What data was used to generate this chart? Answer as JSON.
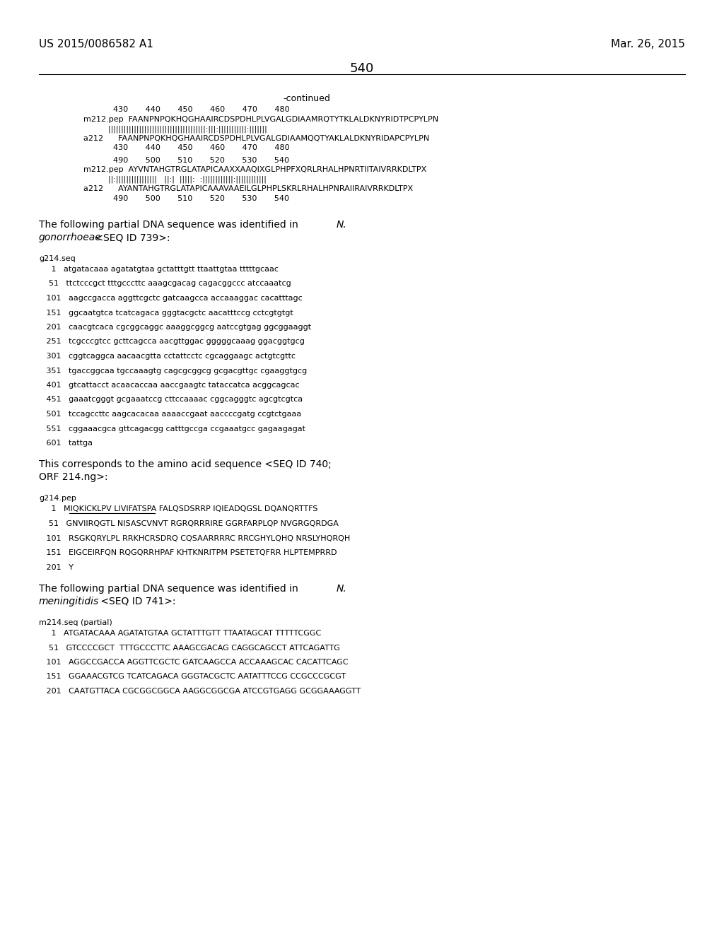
{
  "page_number": "540",
  "patent_number": "US 2015/0086582 A1",
  "patent_date": "Mar. 26, 2015",
  "background_color": "#ffffff",
  "text_color": "#000000",
  "continued_label": "-continued",
  "align_lines": [
    "            430       440       450       460       470       480",
    "m212.pep  FAANPNPQKHQGHAAIRCDSPDHLPLVGALGDIAAMRQTYTKLALDKNYRIDTPCPYLPN",
    "          ||||||||||||||||||||||||||||||||||||||:|||:|||||||||||:|||||||",
    "a212      FAANPNPQKHQGHAAIRCDSPDHLPLVGALGDIAAMQQTYAKLALDKNYRIDAPCPYLPN",
    "            430       440       450       460       470       480",
    "            490       500       510       520       530       540",
    "m212.pep  AYVNTAHGTRGLATAPICAAXXAAQIXGLPHPFXQRLRHALHPNRTIITAIVRRKDLTPX",
    "          ||:||||||||||||||||   ||:|  |||||:  :||||||||||||:||||||||||||",
    "a212      AYANTAHGTRGLATAPICAAAVAAEILGLPHPLSKRLRHALHPNRAIIRAIVRRKDLTPX",
    "            490       500       510       520       530       540"
  ],
  "para1_normal": "The following partial DNA sequence was identified in ",
  "para1_italic": "N.",
  "para2_italic": "gonorrhoeae",
  "para2_normal": " <SEQ ID 739>:",
  "seq_label1": "g214.seq",
  "seq_lines1": [
    "     1   atgatacaaa agatatgtaa gctatttgtt ttaattgtaa tttttgcaac",
    "    51   ttctcccgct tttgcccttc aaagcgacag cagacggccc atccaaatcg",
    "   101   aagccgacca aggttcgctc gatcaagcca accaaaggac cacatttagc",
    "   151   ggcaatgtca tcatcagaca gggtacgctc aacatttccg cctcgtgtgt",
    "   201   caacgtcaca cgcggcaggc aaaggcggcg aatccgtgag ggcggaaggt",
    "   251   tcgcccgtcc gcttcagcca aacgttggac gggggcaaag ggacggtgcg",
    "   301   cggtcaggca aacaacgtta cctattcctc cgcaggaagc actgtcgttc",
    "   351   tgaccggcaa tgccaaagtg cagcgcggcg gcgacgttgc cgaaggtgcg",
    "   401   gtcattacct acaacaccaa aaccgaagtc tataccatca acggcagcac",
    "   451   gaaatcgggt gcgaaatccg cttccaaaac cggcagggtc agcgtcgtca",
    "   501   tccagccttc aagcacacaa aaaaccgaat aaccccgatg ccgtctgaaa",
    "   551   cggaaacgca gttcagacgg catttgccga ccgaaatgcc gagaagagat",
    "   601   tattga"
  ],
  "para3_normal": "This corresponds to the amino acid sequence <SEQ ID 740;",
  "para3b_normal": "ORF 214.ng>:",
  "seq_label2": "g214.pep",
  "seq_lines2": [
    "     1   MIQKICKLPV LIVIFATSPA FALQSDSRRP IQIEADQGSL DQANQRTTFS",
    "    51   GNVIIRQGTL NISASCVNVT RGRQRRRIRE GGRFARPLQP NVGRGQRDGA",
    "   101   RSGKQRYLPL RRKHCRSDRQ CQSAARRRRC RRCGHYLQHQ NRSLYHQRQH",
    "   151   EIGCEIRFQN RQGQRRHPAF KHTKNRITPM PSETETQFRR HLPTEMPRRD",
    "   201   Y"
  ],
  "para4_normal": "The following partial DNA sequence was identified in ",
  "para4_italic": "N.",
  "para5_italic": "meningitidis",
  "para5_normal": " <SEQ ID 741>:",
  "seq_label3": "m214.seq (partial)",
  "seq_lines3": [
    "     1   ATGATACAAA AGATATGTAA GCTATTTGTT TTAATAGCAT TTTTTCGGC",
    "    51   GTCCCCGCT  TTTGCCCTTC AAAGCGACAG CAGGCAGCCT ATTCAGATTG",
    "   101   AGGCCGACCA AGGTTCGCTC GATCAAGCCA ACCAAAGCAC CACATTCAGC",
    "   151   GGAAACGTCG TCATCAGACA GGGTACGCTC AATATTTCCG CCGCCCGCGT",
    "   201   CAATGTTACA CGCGGCGGCA AAGGCGGCGA ATCCGTGAGG GCGGAAAGGTT"
  ]
}
